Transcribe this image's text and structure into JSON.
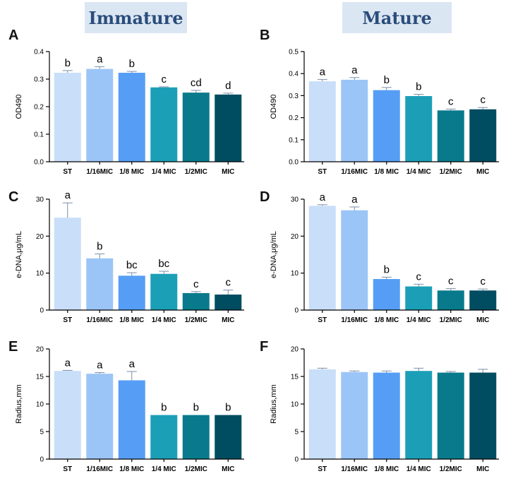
{
  "headers": {
    "left": "Immature",
    "right": "Mature"
  },
  "colors": [
    "#c9def8",
    "#9cc5f7",
    "#569ef5",
    "#1b9fb7",
    "#097a8c",
    "#004c61"
  ],
  "chart_data": [
    {
      "panel": "A",
      "type": "bar",
      "ylabel": "OD490",
      "ylim": [
        0,
        0.4
      ],
      "yticks": [
        "0.0",
        "0.1",
        "0.2",
        "0.3",
        "0.4"
      ],
      "categories": [
        "ST",
        "1/16MIC",
        "1/8 MIC",
        "1/4 MIC",
        "1/2MIC",
        "MIC"
      ],
      "values": [
        0.323,
        0.337,
        0.323,
        0.27,
        0.251,
        0.244
      ],
      "errors": [
        0.008,
        0.008,
        0.005,
        0.002,
        0.008,
        0.005
      ],
      "letters": [
        "b",
        "a",
        "b",
        "c",
        "cd",
        "d"
      ]
    },
    {
      "panel": "B",
      "type": "bar",
      "ylabel": "OD490",
      "ylim": [
        0,
        0.5
      ],
      "yticks": [
        "0.0",
        "0.1",
        "0.2",
        "0.3",
        "0.4",
        "0.5"
      ],
      "categories": [
        "ST",
        "1/16MIC",
        "1/8 MIC",
        "1/4 MIC",
        "1/2MIC",
        "MIC"
      ],
      "values": [
        0.365,
        0.372,
        0.325,
        0.298,
        0.233,
        0.238
      ],
      "errors": [
        0.008,
        0.01,
        0.012,
        0.008,
        0.006,
        0.008
      ],
      "letters": [
        "a",
        "a",
        "b",
        "b",
        "c",
        "c"
      ]
    },
    {
      "panel": "C",
      "type": "bar",
      "ylabel": "e-DNA,μg/mL",
      "ylim": [
        0,
        30
      ],
      "yticks": [
        "0",
        "10",
        "20",
        "30"
      ],
      "categories": [
        "ST",
        "1/16MIC",
        "1/8 MIC",
        "1/4 MIC",
        "1/2MIC",
        "MIC"
      ],
      "values": [
        25,
        14,
        9.3,
        9.8,
        4.6,
        4.2
      ],
      "errors": [
        4,
        1.2,
        0.8,
        0.7,
        0.4,
        1.2
      ],
      "letters": [
        "a",
        "b",
        "bc",
        "bc",
        "c",
        "c"
      ]
    },
    {
      "panel": "D",
      "type": "bar",
      "ylabel": "e-DNA,μg/mL",
      "ylim": [
        0,
        30
      ],
      "yticks": [
        "0",
        "10",
        "20",
        "30"
      ],
      "categories": [
        "ST",
        "1/16MIC",
        "1/8 MIC",
        "1/4 MIC",
        "1/2MIC",
        "MIC"
      ],
      "values": [
        28.2,
        27,
        8.4,
        6.4,
        5.3,
        5.3
      ],
      "errors": [
        0.3,
        0.9,
        0.5,
        0.6,
        0.5,
        0.4
      ],
      "letters": [
        "a",
        "a",
        "b",
        "c",
        "c",
        "c"
      ]
    },
    {
      "panel": "E",
      "type": "bar",
      "ylabel": "Radius,mm",
      "ylim": [
        0,
        20
      ],
      "yticks": [
        "0",
        "5",
        "10",
        "15",
        "20"
      ],
      "categories": [
        "ST",
        "1/16MIC",
        "1/8 MIC",
        "1/4 MIC",
        "1/2MIC",
        "MIC"
      ],
      "values": [
        16,
        15.5,
        14.3,
        8,
        8,
        8
      ],
      "errors": [
        0.1,
        0.2,
        1.6,
        0,
        0,
        0
      ],
      "letters": [
        "a",
        "a",
        "a",
        "b",
        "b",
        "b"
      ]
    },
    {
      "panel": "F",
      "type": "bar",
      "ylabel": "Radius,mm",
      "ylim": [
        0,
        20
      ],
      "yticks": [
        "0",
        "5",
        "10",
        "15",
        "20"
      ],
      "categories": [
        "ST",
        "1/16MIC",
        "1/8 MIC",
        "1/4 MIC",
        "1/2MIC",
        "MIC"
      ],
      "values": [
        16.3,
        15.8,
        15.7,
        16,
        15.7,
        15.7
      ],
      "errors": [
        0.2,
        0.2,
        0.3,
        0.5,
        0.2,
        0.6
      ],
      "letters": []
    }
  ]
}
